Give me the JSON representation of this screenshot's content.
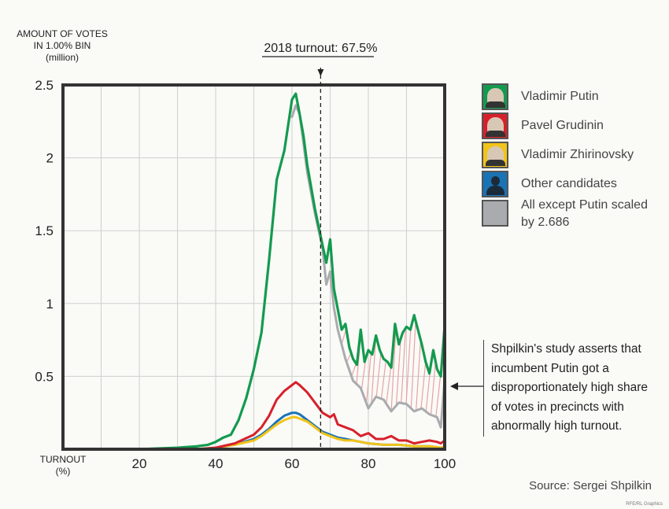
{
  "chart_data": {
    "type": "line",
    "ylabel_lines": [
      "AMOUNT OF VOTES",
      "IN 1.00% BIN",
      "(million)"
    ],
    "xlabel_lines": [
      "TURNOUT",
      "(%)"
    ],
    "xlim": [
      0,
      100
    ],
    "ylim": [
      0,
      2.5
    ],
    "xticks": [
      20,
      40,
      60,
      80,
      100
    ],
    "yticks": [
      0.5,
      1,
      1.5,
      2,
      2.5
    ],
    "ytick_labels": [
      "0.5",
      "1",
      "1.5",
      "2",
      "2.5"
    ],
    "grid": true,
    "turnout_marker": {
      "x": 67.5,
      "label": "2018 turnout: 67.5%"
    },
    "series": [
      {
        "name": "Other candidates",
        "color": "#1a73b5",
        "x": [
          30,
          35,
          40,
          45,
          50,
          52,
          54,
          56,
          58,
          60,
          61,
          62,
          64,
          66,
          68,
          70,
          72,
          74,
          76,
          78,
          80,
          84,
          88,
          92,
          96,
          99,
          100
        ],
        "y": [
          0,
          0,
          0.01,
          0.03,
          0.07,
          0.1,
          0.14,
          0.19,
          0.23,
          0.25,
          0.25,
          0.24,
          0.2,
          0.16,
          0.12,
          0.1,
          0.08,
          0.07,
          0.06,
          0.05,
          0.04,
          0.03,
          0.03,
          0.02,
          0.02,
          0.01,
          0.02
        ]
      },
      {
        "name": "Vladimir Zhirinovsky",
        "color": "#f0c419",
        "x": [
          30,
          35,
          40,
          45,
          50,
          52,
          54,
          56,
          58,
          60,
          61,
          62,
          64,
          66,
          68,
          70,
          72,
          74,
          76,
          78,
          80,
          84,
          88,
          92,
          96,
          99,
          100
        ],
        "y": [
          0,
          0,
          0.01,
          0.03,
          0.06,
          0.09,
          0.13,
          0.17,
          0.2,
          0.22,
          0.22,
          0.21,
          0.19,
          0.15,
          0.11,
          0.09,
          0.07,
          0.06,
          0.06,
          0.05,
          0.04,
          0.03,
          0.03,
          0.02,
          0.02,
          0.01,
          0.02
        ]
      },
      {
        "name": "Pavel Grudinin",
        "color": "#d7202a",
        "x": [
          30,
          35,
          40,
          45,
          50,
          52,
          54,
          56,
          58,
          60,
          61,
          62,
          64,
          66,
          68,
          70,
          71,
          72,
          74,
          76,
          78,
          80,
          82,
          84,
          86,
          88,
          90,
          92,
          94,
          96,
          98,
          99,
          100
        ],
        "y": [
          0,
          0,
          0.01,
          0.04,
          0.1,
          0.15,
          0.23,
          0.34,
          0.4,
          0.44,
          0.46,
          0.44,
          0.39,
          0.32,
          0.25,
          0.22,
          0.24,
          0.17,
          0.15,
          0.13,
          0.09,
          0.11,
          0.07,
          0.07,
          0.09,
          0.06,
          0.06,
          0.04,
          0.05,
          0.06,
          0.05,
          0.04,
          0.06
        ]
      },
      {
        "name": "All except Putin scaled by 2.686",
        "color": "#a9abae",
        "x": [
          60,
          61,
          62,
          63,
          64,
          66,
          68,
          69,
          70,
          71,
          72,
          74,
          76,
          78,
          80,
          82,
          84,
          86,
          88,
          90,
          92,
          94,
          96,
          98,
          99,
          100
        ],
        "y": [
          2.28,
          2.36,
          2.3,
          2.1,
          1.9,
          1.62,
          1.38,
          1.13,
          1.22,
          0.97,
          0.82,
          0.62,
          0.47,
          0.42,
          0.28,
          0.36,
          0.34,
          0.26,
          0.32,
          0.31,
          0.26,
          0.28,
          0.24,
          0.22,
          0.15,
          0.48
        ]
      },
      {
        "name": "Vladimir Putin",
        "color": "#149a4f",
        "x": [
          20,
          30,
          35,
          38,
          40,
          42,
          44,
          46,
          48,
          50,
          52,
          54,
          56,
          58,
          60,
          61,
          62,
          63,
          64,
          66,
          68,
          69,
          70,
          71,
          72,
          73,
          74,
          75,
          76,
          77,
          78,
          79,
          80,
          81,
          82,
          83,
          84,
          85,
          86,
          87,
          88,
          89,
          90,
          91,
          92,
          93,
          94,
          95,
          96,
          97,
          98,
          99,
          100
        ],
        "y": [
          0,
          0.01,
          0.02,
          0.03,
          0.05,
          0.08,
          0.1,
          0.2,
          0.35,
          0.55,
          0.8,
          1.3,
          1.85,
          2.05,
          2.4,
          2.44,
          2.3,
          2.15,
          1.95,
          1.65,
          1.4,
          1.28,
          1.44,
          1.1,
          0.96,
          0.82,
          0.86,
          0.7,
          0.62,
          0.58,
          0.82,
          0.6,
          0.68,
          0.65,
          0.78,
          0.68,
          0.62,
          0.6,
          0.56,
          0.86,
          0.72,
          0.8,
          0.84,
          0.82,
          0.92,
          0.82,
          0.72,
          0.6,
          0.52,
          0.68,
          0.55,
          0.5,
          0.85
        ]
      }
    ]
  },
  "legend": [
    {
      "label": "Vladimir Putin",
      "bg": "#149a4f",
      "icon": "putin-photo-icon",
      "kind": "face"
    },
    {
      "label": "Pavel Grudinin",
      "bg": "#d7202a",
      "icon": "grudinin-photo-icon",
      "kind": "face"
    },
    {
      "label": "Vladimir Zhirinovsky",
      "bg": "#f0c419",
      "icon": "zhirinovsky-photo-icon",
      "kind": "face"
    },
    {
      "label": "Other candidates",
      "bg": "#1a73b5",
      "icon": "person-silhouette-icon",
      "kind": "silhouette"
    },
    {
      "label_lines": [
        "All except Putin scaled",
        "by 2.686"
      ],
      "bg": "#a9abae",
      "icon": "gray-swatch-icon",
      "kind": "plain"
    }
  ],
  "annotation_lines": [
    "Shpilkin's study asserts that",
    "incumbent Putin got a",
    "disproportionately high share",
    "of votes in precincts with",
    "abnormally high turnout."
  ],
  "source": "Source: Sergei Shpilkin",
  "credit": "RFE/RL Graphics",
  "colors": {
    "hatch": "#e8a3a3",
    "axis": "#333333",
    "grid": "#cfcfcf"
  }
}
